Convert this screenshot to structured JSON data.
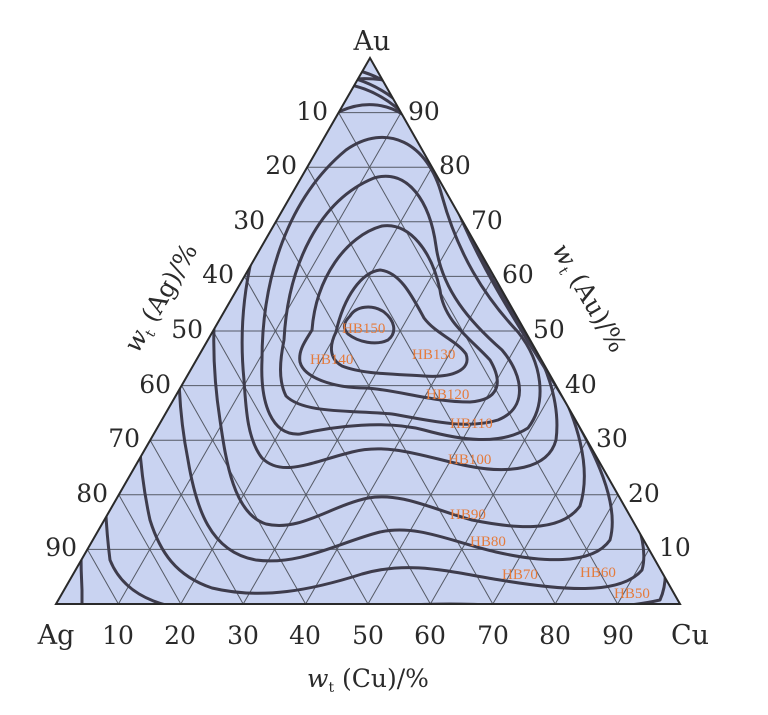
{
  "vertices": {
    "top": "Au",
    "left": "Ag",
    "right": "Cu"
  },
  "ticks": {
    "cu_bottom": [
      "10",
      "20",
      "30",
      "40",
      "50",
      "60",
      "70",
      "80",
      "90"
    ],
    "ag_left": [
      "10",
      "20",
      "30",
      "40",
      "50",
      "60",
      "70",
      "80",
      "90"
    ],
    "au_right": [
      "90",
      "80",
      "70",
      "60",
      "50",
      "40",
      "30",
      "20",
      "10"
    ]
  },
  "axis_titles": {
    "cu": {
      "sym": "w",
      "sub": "t",
      "rest": " (Cu)/%"
    },
    "ag": {
      "sym": "w",
      "sub": "t",
      "rest": " (Ag)/%"
    },
    "au": {
      "sym": "w",
      "sub": "t",
      "rest": " (Au)/%"
    }
  },
  "hardness_labels": [
    "HB150",
    "HB140",
    "HB130",
    "HB120",
    "HB110",
    "HB100",
    "HB90",
    "HB80",
    "HB70",
    "HB60",
    "HB50"
  ],
  "colors": {
    "fill": "#c9d3f1",
    "grid": "#555a66",
    "contour": "#3e3c4c",
    "label": "#e57b3c",
    "text": "#2a2a2a"
  }
}
